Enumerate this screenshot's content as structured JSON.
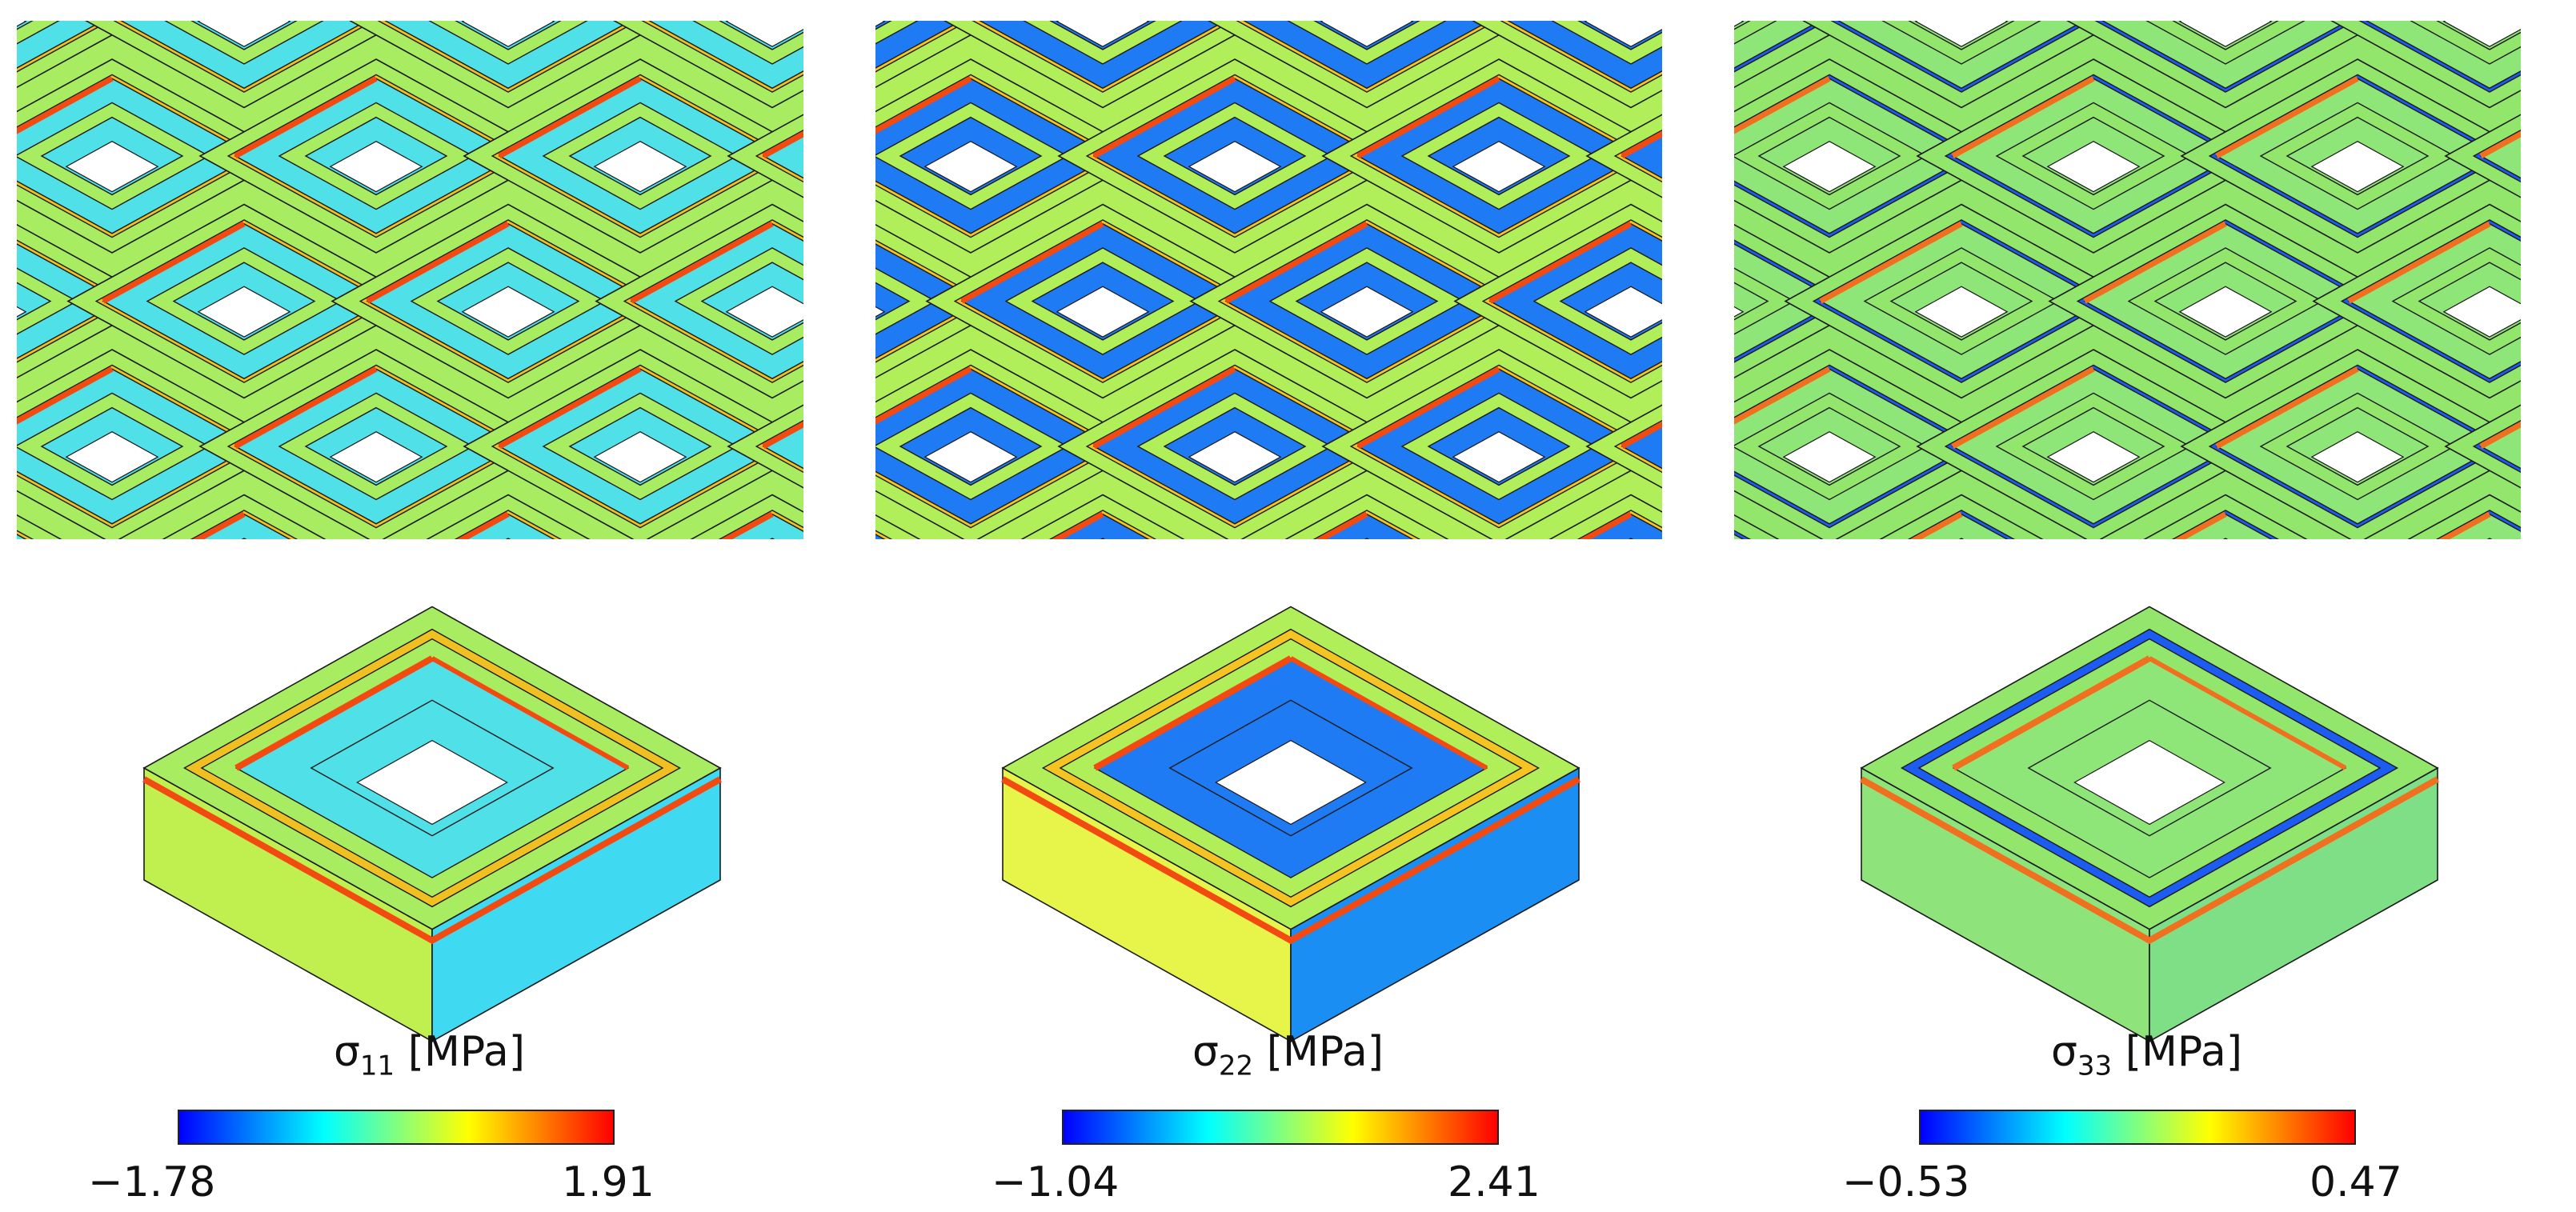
{
  "colormap": [
    "#0000ff",
    "#0080ff",
    "#00ffff",
    "#80ff80",
    "#ffff00",
    "#ff8000",
    "#ff0000"
  ],
  "panels": [
    {
      "symbol": "σ",
      "subscript": "11",
      "unit": "[MPa]",
      "min_label": "−1.78",
      "max_label": "1.91",
      "min": -1.78,
      "max": 1.91,
      "colors": {
        "face": "#a7ec61",
        "well": "#4fe0e8",
        "edge": "#f0c022",
        "hot": "#f24a10",
        "side": "#bff050",
        "side_low": "#3fd9f2"
      }
    },
    {
      "symbol": "σ",
      "subscript": "22",
      "unit": "[MPa]",
      "min_label": "−1.04",
      "max_label": "2.41",
      "min": -1.04,
      "max": 2.41,
      "colors": {
        "face": "#b0ef5a",
        "well": "#1f7bf4",
        "edge": "#f5c422",
        "hot": "#f24a10",
        "side": "#e7f54a",
        "side_low": "#1a8ef2"
      }
    },
    {
      "symbol": "σ",
      "subscript": "33",
      "unit": "[MPa]",
      "min_label": "−0.53",
      "max_label": "0.47",
      "min": -0.53,
      "max": 0.47,
      "colors": {
        "face": "#92e66b",
        "well": "#8fe678",
        "edge": "#1d5cf0",
        "hot": "#f07020",
        "side": "#8ee37a",
        "side_low": "#7fdf86"
      }
    }
  ]
}
